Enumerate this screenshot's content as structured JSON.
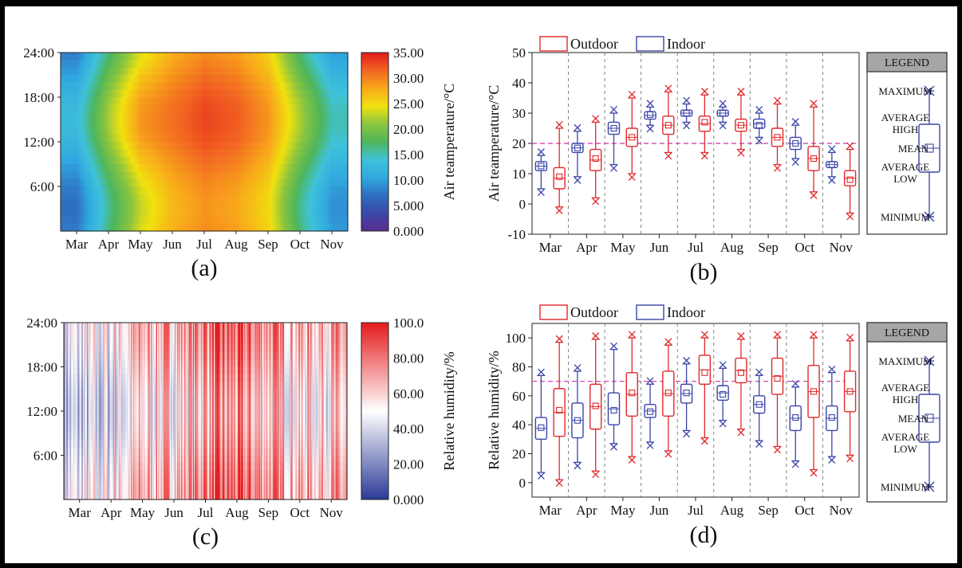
{
  "colors": {
    "outdoor": "#e0282b",
    "indoor": "#3a45a8",
    "reference_line": "#cc33aa",
    "legend_header_bg": "#a6a6a6",
    "temp_scale": [
      "#5b2c8f",
      "#3a49a6",
      "#2f6fc1",
      "#30a9e0",
      "#3fc2d9",
      "#4fb65a",
      "#8bc53f",
      "#f1e10f",
      "#f8a81b",
      "#f26522",
      "#e31a1c"
    ],
    "rh_scale": [
      "#2b3a97",
      "#ffffff",
      "#e41a1c"
    ]
  },
  "chart_data": [
    {
      "panel": "(a)",
      "type": "heatmap",
      "ylabel": "",
      "y_ticks": [
        "24:00",
        "18:00",
        "12:00",
        "6:00"
      ],
      "x_ticks": [
        "Mar",
        "Apr",
        "May",
        "Jun",
        "Jul",
        "Aug",
        "Sep",
        "Oct",
        "Nov"
      ],
      "colorbar_label": "Air teamperature/°C",
      "colorbar_ticks": [
        "35.00",
        "30.00",
        "25.00",
        "20.00",
        "15.00",
        "10.00",
        "5.000",
        "0.000"
      ],
      "colorbar_range": [
        0,
        35
      ],
      "monthly_daily_mean": [
        10,
        19,
        26,
        29,
        31,
        30,
        27,
        19,
        12
      ],
      "hourly_amplitude": [
        3,
        3,
        3,
        2,
        2,
        2,
        2,
        3,
        3
      ]
    },
    {
      "panel": "(b)",
      "type": "box",
      "ylabel": "Air teamperature/°C",
      "ylim": [
        -10,
        50
      ],
      "y_ticks": [
        50,
        40,
        30,
        20,
        10,
        0,
        -10
      ],
      "categories": [
        "Mar",
        "Apr",
        "May",
        "Jun",
        "Jul",
        "Aug",
        "Sep",
        "Oct",
        "Nov"
      ],
      "reference_line": 20,
      "series": [
        {
          "name": "Outdoor",
          "boxes": [
            {
              "min": -1,
              "q1": 5,
              "mean": 9,
              "q3": 12,
              "max": 25
            },
            {
              "min": 2,
              "q1": 11,
              "mean": 15,
              "q3": 18,
              "max": 27
            },
            {
              "min": 10,
              "q1": 19,
              "mean": 22,
              "q3": 25,
              "max": 35
            },
            {
              "min": 17,
              "q1": 23,
              "mean": 26,
              "q3": 29,
              "max": 37
            },
            {
              "min": 17,
              "q1": 24,
              "mean": 27,
              "q3": 29,
              "max": 36
            },
            {
              "min": 18,
              "q1": 24,
              "mean": 26,
              "q3": 28,
              "max": 36
            },
            {
              "min": 13,
              "q1": 19,
              "mean": 22,
              "q3": 25,
              "max": 33
            },
            {
              "min": 4,
              "q1": 11,
              "mean": 15,
              "q3": 19,
              "max": 32
            },
            {
              "min": -3,
              "q1": 6,
              "mean": 8,
              "q3": 11,
              "max": 18
            }
          ]
        },
        {
          "name": "Indoor",
          "boxes": [
            {
              "min": 5,
              "q1": 11,
              "mean": 12.5,
              "q3": 14,
              "max": 16
            },
            {
              "min": 9,
              "q1": 17,
              "mean": 18.5,
              "q3": 20,
              "max": 24
            },
            {
              "min": 13,
              "q1": 23,
              "mean": 25,
              "q3": 27,
              "max": 30
            },
            {
              "min": 26,
              "q1": 28,
              "mean": 29.5,
              "q3": 30.5,
              "max": 32
            },
            {
              "min": 27,
              "q1": 29,
              "mean": 30,
              "q3": 31,
              "max": 33
            },
            {
              "min": 27,
              "q1": 29,
              "mean": 30,
              "q3": 31,
              "max": 32
            },
            {
              "min": 22,
              "q1": 25,
              "mean": 26,
              "q3": 28,
              "max": 30
            },
            {
              "min": 15,
              "q1": 18,
              "mean": 20,
              "q3": 22,
              "max": 26
            },
            {
              "min": 9,
              "q1": 12,
              "mean": 13,
              "q3": 14,
              "max": 17
            }
          ]
        }
      ]
    },
    {
      "panel": "(c)",
      "type": "heatmap",
      "y_ticks": [
        "24:00",
        "18:00",
        "12:00",
        "6:00"
      ],
      "x_ticks": [
        "Mar",
        "Apr",
        "May",
        "Jun",
        "Jul",
        "Aug",
        "Sep",
        "Oct",
        "Nov"
      ],
      "colorbar_label": "Relative humidity/%",
      "colorbar_ticks": [
        "100.0",
        "80.00",
        "60.00",
        "40.00",
        "20.00",
        "0.000"
      ],
      "colorbar_range": [
        0,
        100
      ],
      "monthly_mean": [
        38,
        45,
        62,
        62,
        75,
        75,
        70,
        60,
        62
      ]
    },
    {
      "panel": "(d)",
      "type": "box",
      "ylabel": "Relative humidity/%",
      "ylim": [
        -10,
        110
      ],
      "y_ticks": [
        100,
        80,
        60,
        40,
        20,
        0
      ],
      "categories": [
        "Mar",
        "Apr",
        "May",
        "Jun",
        "Jul",
        "Aug",
        "Sep",
        "Oct",
        "Nov"
      ],
      "reference_line": 70,
      "series": [
        {
          "name": "Outdoor",
          "boxes": [
            {
              "min": 2,
              "q1": 32,
              "mean": 50,
              "q3": 65,
              "max": 97
            },
            {
              "min": 8,
              "q1": 37,
              "mean": 53,
              "q3": 68,
              "max": 99
            },
            {
              "min": 18,
              "q1": 46,
              "mean": 62,
              "q3": 76,
              "max": 100
            },
            {
              "min": 22,
              "q1": 46,
              "mean": 62,
              "q3": 77,
              "max": 95
            },
            {
              "min": 31,
              "q1": 68,
              "mean": 76,
              "q3": 88,
              "max": 100
            },
            {
              "min": 37,
              "q1": 69,
              "mean": 76,
              "q3": 86,
              "max": 99
            },
            {
              "min": 25,
              "q1": 61,
              "mean": 72,
              "q3": 86,
              "max": 100
            },
            {
              "min": 9,
              "q1": 45,
              "mean": 63,
              "q3": 81,
              "max": 100
            },
            {
              "min": 19,
              "q1": 49,
              "mean": 63,
              "q3": 77,
              "max": 98
            }
          ]
        },
        {
          "name": "Indoor",
          "boxes": [
            {
              "min": 7,
              "q1": 30,
              "mean": 38,
              "q3": 45,
              "max": 74
            },
            {
              "min": 14,
              "q1": 31,
              "mean": 43,
              "q3": 55,
              "max": 77
            },
            {
              "min": 27,
              "q1": 40,
              "mean": 50,
              "q3": 62,
              "max": 92
            },
            {
              "min": 28,
              "q1": 45,
              "mean": 49,
              "q3": 54,
              "max": 68
            },
            {
              "min": 36,
              "q1": 55,
              "mean": 62,
              "q3": 68,
              "max": 82
            },
            {
              "min": 43,
              "q1": 57,
              "mean": 61,
              "q3": 67,
              "max": 79
            },
            {
              "min": 29,
              "q1": 48,
              "mean": 54,
              "q3": 60,
              "max": 74
            },
            {
              "min": 15,
              "q1": 36,
              "mean": 45,
              "q3": 53,
              "max": 66
            },
            {
              "min": 18,
              "q1": 36,
              "mean": 45,
              "q3": 53,
              "max": 76
            }
          ]
        }
      ]
    }
  ],
  "legend_box": {
    "header": "LEGEND",
    "maximum": "MAXIMUM",
    "average_high": [
      "AVERAGE",
      "HIGH"
    ],
    "mean": "MEAN",
    "average_low": [
      "AVERAGE",
      "LOW"
    ],
    "minimum": "MINIMUM"
  },
  "series_legend": {
    "outdoor": "Outdoor",
    "indoor": "Indoor"
  }
}
